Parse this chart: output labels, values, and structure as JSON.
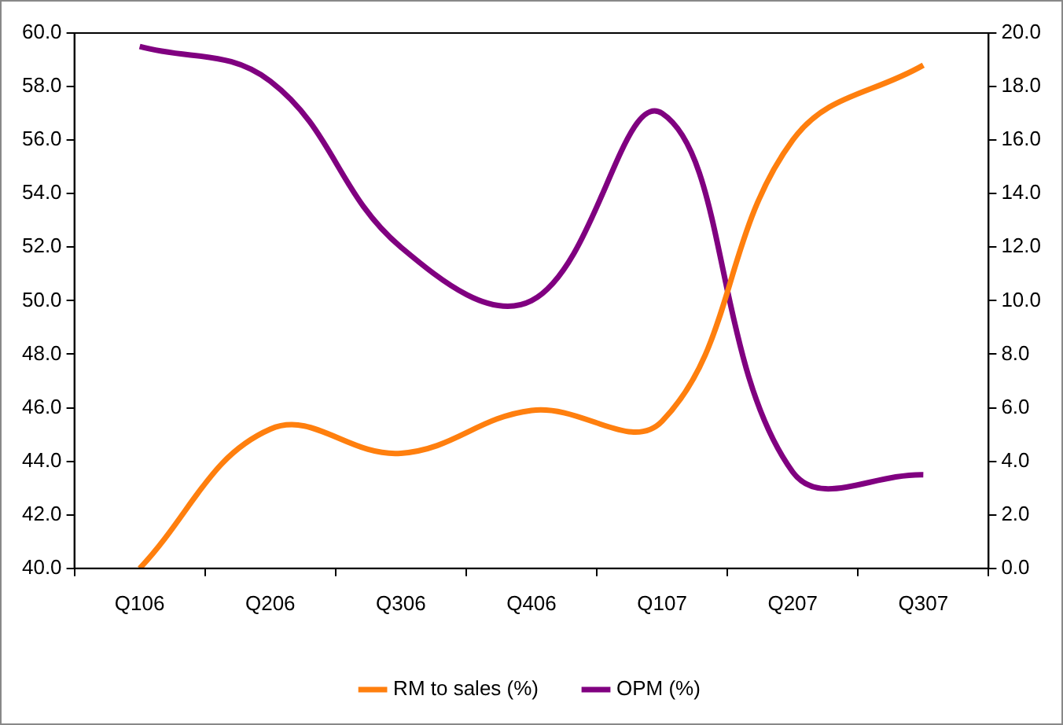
{
  "chart_data": {
    "type": "line",
    "categories": [
      "Q106",
      "Q206",
      "Q306",
      "Q406",
      "Q107",
      "Q207",
      "Q307"
    ],
    "series": [
      {
        "name": "RM to sales (%)",
        "color": "#ff7f0e",
        "values": [
          40.0,
          45.2,
          44.3,
          45.9,
          45.5,
          56.0,
          58.8
        ]
      },
      {
        "name": "OPM (%)",
        "color": "#800080",
        "axis": "y2",
        "values": [
          19.5,
          18.2,
          12.0,
          10.0,
          17.0,
          3.6,
          3.5
        ]
      }
    ],
    "ylim": [
      40,
      60
    ],
    "yticks": [
      {
        "value": 40,
        "label": "40.0"
      },
      {
        "value": 42,
        "label": "42.0"
      },
      {
        "value": 44,
        "label": "44.0"
      },
      {
        "value": 46,
        "label": "46.0"
      },
      {
        "value": 48,
        "label": "48.0"
      },
      {
        "value": 50,
        "label": "50.0"
      },
      {
        "value": 52,
        "label": "52.0"
      },
      {
        "value": 54,
        "label": "54.0"
      },
      {
        "value": 56,
        "label": "56.0"
      },
      {
        "value": 58,
        "label": "58.0"
      },
      {
        "value": 60,
        "label": "60.0"
      }
    ],
    "y2lim": [
      0,
      20
    ],
    "y2ticks": [
      {
        "value": 0,
        "label": "0.0"
      },
      {
        "value": 2,
        "label": "2.0"
      },
      {
        "value": 4,
        "label": "4.0"
      },
      {
        "value": 6,
        "label": "6.0"
      },
      {
        "value": 8,
        "label": "8.0"
      },
      {
        "value": 10,
        "label": "10.0"
      },
      {
        "value": 12,
        "label": "12.0"
      },
      {
        "value": 14,
        "label": "14.0"
      },
      {
        "value": 16,
        "label": "16.0"
      },
      {
        "value": 18,
        "label": "18.0"
      },
      {
        "value": 20,
        "label": "20.0"
      }
    ],
    "legend": "bottom",
    "marker": "none",
    "line_style": "solid"
  }
}
